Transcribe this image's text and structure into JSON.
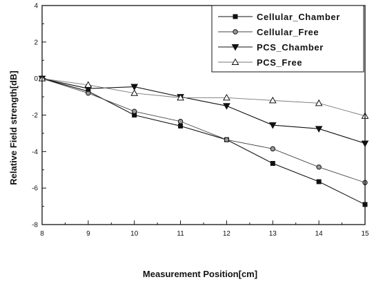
{
  "chart_data": {
    "type": "line",
    "title": "",
    "xlabel": "Measurement Position[cm]",
    "ylabel": "Relative Field strength[dB]",
    "xlim": [
      8,
      15
    ],
    "ylim": [
      -8,
      4
    ],
    "xticks": [
      8,
      9,
      10,
      11,
      12,
      13,
      14,
      15
    ],
    "xtick_labels": [
      "8",
      "9",
      "10",
      "11",
      "12",
      "13",
      "14",
      "15"
    ],
    "yticks": [
      -8,
      -6,
      -4,
      -2,
      0,
      2,
      4
    ],
    "ytick_labels": [
      "-8",
      "-6",
      "-4",
      "-2",
      "0",
      "2",
      "4"
    ],
    "grid": false,
    "legend_position": "top-right",
    "x": [
      8,
      9,
      10,
      11,
      12,
      13,
      14,
      15
    ],
    "series": [
      {
        "name": "Cellular_Chamber",
        "marker": "filled-square",
        "values": [
          0,
          -0.7,
          -2.0,
          -2.6,
          -3.35,
          -4.65,
          -5.65,
          -6.9
        ]
      },
      {
        "name": "Cellular_Free",
        "marker": "circle",
        "values": [
          0,
          -0.8,
          -1.8,
          -2.35,
          -3.35,
          -3.85,
          -4.85,
          -5.7
        ]
      },
      {
        "name": "PCS_Chamber",
        "marker": "filled-triangle-down",
        "values": [
          0,
          -0.55,
          -0.45,
          -1.0,
          -1.5,
          -2.55,
          -2.75,
          -3.55
        ]
      },
      {
        "name": "PCS_Free",
        "marker": "open-triangle-up",
        "values": [
          0,
          -0.35,
          -0.8,
          -1.05,
          -1.05,
          -1.2,
          -1.35,
          -2.05
        ]
      }
    ]
  }
}
